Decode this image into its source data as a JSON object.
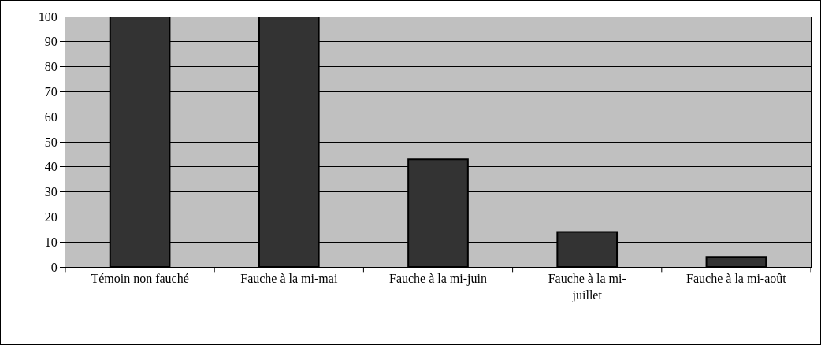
{
  "chart_data": {
    "type": "bar",
    "categories": [
      "Témoin non fauché",
      "Fauche à la mi-mai",
      "Fauche à la mi-juin",
      "Fauche à la mi-juillet",
      "Fauche à la mi-août"
    ],
    "values": [
      100,
      100,
      43,
      14,
      4
    ],
    "color": "#333333",
    "ylim": [
      0,
      100
    ],
    "yticks": [
      0,
      10,
      20,
      30,
      40,
      50,
      60,
      70,
      80,
      90,
      100
    ],
    "grid": "y"
  }
}
